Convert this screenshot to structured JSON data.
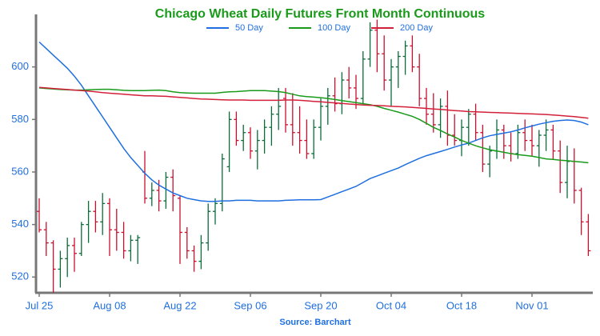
{
  "chart_data": {
    "type": "ohlc",
    "title": "Chicago Wheat Daily Futures Front Month Continuous",
    "source": "Source: Barchart",
    "categories": [
      "Jul 25",
      null,
      null,
      null,
      null,
      null,
      null,
      null,
      null,
      null,
      "Aug 08",
      null,
      null,
      null,
      null,
      null,
      null,
      null,
      null,
      null,
      "Aug 22",
      null,
      null,
      null,
      null,
      null,
      null,
      null,
      null,
      null,
      "Sep 06",
      null,
      null,
      null,
      null,
      null,
      null,
      null,
      null,
      null,
      "Sep 20",
      null,
      null,
      null,
      null,
      null,
      null,
      null,
      null,
      null,
      "Oct 04",
      null,
      null,
      null,
      null,
      null,
      null,
      null,
      null,
      null,
      "Oct 18",
      null,
      null,
      null,
      null,
      null,
      null,
      null,
      null,
      null,
      "Nov 01",
      null,
      null,
      null,
      null,
      null,
      null,
      null,
      null
    ],
    "open": [
      545,
      538,
      533,
      523,
      527,
      532,
      529,
      540,
      545,
      541,
      548,
      538,
      537,
      530,
      534,
      560,
      550,
      553,
      549,
      558,
      550,
      537,
      530,
      526,
      533,
      545,
      548,
      562,
      580,
      572,
      575,
      568,
      572,
      577,
      582,
      588,
      578,
      575,
      572,
      567,
      577,
      585,
      589,
      586,
      595,
      592,
      588,
      603,
      614,
      605,
      595,
      600,
      604,
      608,
      600,
      588,
      582,
      578,
      585,
      574,
      572,
      577,
      582,
      575,
      563,
      568,
      576,
      570,
      567,
      575,
      572,
      570,
      574,
      576,
      568,
      556,
      564,
      553,
      541
    ],
    "high": [
      550,
      541,
      534,
      530,
      535,
      535,
      541,
      549,
      549,
      552,
      550,
      546,
      541,
      536,
      536,
      568,
      556,
      557,
      560,
      561,
      551,
      539,
      532,
      536,
      548,
      550,
      567,
      583,
      583,
      578,
      577,
      576,
      580,
      585,
      592,
      592,
      590,
      585,
      580,
      580,
      588,
      592,
      596,
      598,
      600,
      597,
      606,
      617,
      618,
      612,
      603,
      606,
      610,
      612,
      605,
      592,
      590,
      588,
      591,
      582,
      580,
      584,
      586,
      578,
      570,
      580,
      578,
      575,
      578,
      580,
      578,
      576,
      580,
      578,
      572,
      570,
      569,
      554,
      544
    ],
    "low": [
      537,
      528,
      514,
      516,
      520,
      522,
      528,
      533,
      537,
      536,
      528,
      530,
      527,
      526,
      525,
      548,
      547,
      545,
      546,
      545,
      525,
      527,
      522,
      523,
      530,
      540,
      545,
      560,
      570,
      568,
      565,
      561,
      567,
      570,
      576,
      575,
      570,
      567,
      565,
      565,
      572,
      578,
      583,
      582,
      588,
      584,
      586,
      600,
      598,
      591,
      585,
      592,
      597,
      598,
      585,
      578,
      575,
      573,
      570,
      570,
      566,
      570,
      572,
      560,
      558,
      565,
      565,
      564,
      565,
      568,
      566,
      562,
      568,
      565,
      552,
      550,
      548,
      536,
      528
    ],
    "close": [
      538,
      533,
      523,
      527,
      532,
      529,
      540,
      545,
      541,
      548,
      538,
      537,
      530,
      534,
      535,
      550,
      553,
      549,
      558,
      551,
      537,
      530,
      526,
      533,
      545,
      548,
      565,
      580,
      572,
      575,
      568,
      572,
      577,
      582,
      585,
      578,
      575,
      572,
      567,
      577,
      585,
      589,
      586,
      595,
      592,
      588,
      603,
      614,
      605,
      595,
      600,
      604,
      608,
      600,
      588,
      582,
      578,
      585,
      574,
      572,
      577,
      582,
      575,
      563,
      568,
      576,
      570,
      567,
      575,
      572,
      570,
      574,
      576,
      568,
      556,
      564,
      553,
      541,
      530
    ],
    "up_color": "#0b6b3a",
    "down_color": "#c8102e",
    "series": [
      {
        "name": "50 Day",
        "color": "#1f6fe0",
        "values": [
          609.5,
          607,
          604.5,
          602,
          599.5,
          596.5,
          593,
          589,
          585,
          581,
          577,
          573,
          569,
          565.5,
          562.5,
          559.5,
          557,
          555,
          553.5,
          552,
          551,
          550,
          549.5,
          549,
          548.8,
          548.8,
          549,
          549,
          549.2,
          549.2,
          549.2,
          549,
          549,
          549,
          549,
          549.2,
          549.3,
          549.4,
          549.4,
          549.4,
          549.5,
          550.5,
          551.5,
          552.5,
          553.5,
          554.5,
          556,
          557.5,
          558.5,
          559.5,
          560.5,
          561.5,
          562.8,
          564,
          565.2,
          566.2,
          567,
          567.8,
          568.6,
          569.5,
          570.3,
          571,
          572,
          573,
          573.8,
          574.3,
          574.8,
          575.3,
          576,
          576.8,
          577.5,
          578.2,
          578.8,
          579.3,
          579.6,
          579.8,
          579.6,
          579,
          578
        ]
      },
      {
        "name": "100 Day",
        "color": "#1a9a1a",
        "values": [
          592,
          591.8,
          591.6,
          591.4,
          591.3,
          591.2,
          591.2,
          591.3,
          591.4,
          591.5,
          591.5,
          591.3,
          591.1,
          591,
          591,
          591,
          591.1,
          591.2,
          591,
          590.5,
          590.2,
          590.1,
          590,
          590,
          590,
          590,
          590.3,
          590.5,
          590.6,
          590.8,
          591,
          591,
          591,
          590.8,
          590.6,
          590.2,
          589.6,
          589,
          588.7,
          588.5,
          588.3,
          588,
          587.6,
          587.2,
          586.8,
          586.4,
          586,
          585.6,
          585,
          584.2,
          583.5,
          582.8,
          582,
          581.2,
          580,
          578.5,
          577,
          575.8,
          574.5,
          573.3,
          572,
          571,
          570,
          569.2,
          568.5,
          568,
          567.5,
          567,
          566.6,
          566.3,
          566,
          565.5,
          565,
          564.8,
          564.5,
          564.3,
          564,
          563.8,
          563.5
        ]
      },
      {
        "name": "200 Day",
        "color": "#d3203a",
        "values": [
          592.2,
          592,
          591.8,
          591.6,
          591.4,
          591.2,
          591,
          590.8,
          590.5,
          590.2,
          590,
          589.8,
          589.6,
          589.4,
          589.2,
          589,
          589,
          588.9,
          588.8,
          588.6,
          588.4,
          588.2,
          588,
          587.8,
          587.7,
          587.6,
          587.5,
          587.4,
          587.4,
          587.4,
          587.3,
          587.3,
          587.3,
          587.3,
          587.3,
          587.4,
          587.4,
          587.3,
          587.1,
          586.9,
          586.7,
          586.5,
          586.3,
          586.1,
          585.9,
          585.7,
          585.5,
          585.4,
          585.3,
          585.2,
          585,
          584.9,
          584.8,
          584.6,
          584.4,
          584.2,
          584,
          583.8,
          583.6,
          583.4,
          583.2,
          583,
          582.9,
          582.8,
          582.7,
          582.6,
          582.5,
          582.4,
          582.3,
          582.2,
          582.1,
          582,
          581.9,
          581.7,
          581.5,
          581.3,
          581.1,
          580.8,
          580.5
        ]
      }
    ],
    "ylim": [
      514,
      620
    ],
    "yticks": [
      520,
      540,
      560,
      580,
      600
    ],
    "grid": false,
    "title_color": "#1a9a1a",
    "label_color": "#1f6fe0"
  }
}
